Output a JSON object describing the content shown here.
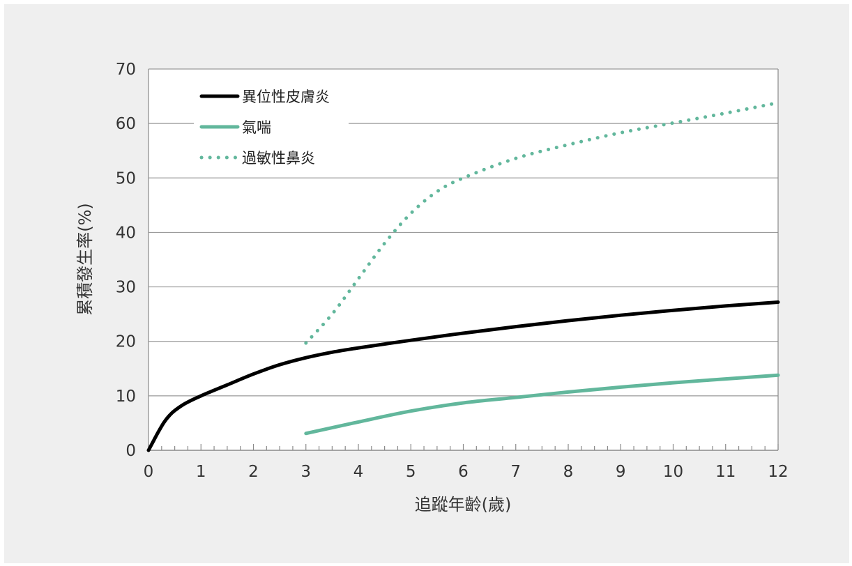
{
  "chart_data": {
    "type": "line",
    "xlabel": "追蹤年齡(歲)",
    "ylabel": "累積發生率(%)",
    "xlim": [
      0,
      12
    ],
    "ylim": [
      0,
      70
    ],
    "x_ticks": [
      0,
      1,
      2,
      3,
      4,
      5,
      6,
      7,
      8,
      9,
      10,
      11,
      12
    ],
    "y_ticks": [
      0,
      10,
      20,
      30,
      40,
      50,
      60,
      70
    ],
    "grid": "horizontal",
    "legend_position": "top-left",
    "series": [
      {
        "name": "異位性皮膚炎",
        "color": "#000000",
        "style": "solid",
        "points": [
          [
            0,
            0
          ],
          [
            0.1,
            1.8
          ],
          [
            0.2,
            3.6
          ],
          [
            0.3,
            5.2
          ],
          [
            0.4,
            6.4
          ],
          [
            0.5,
            7.3
          ],
          [
            0.7,
            8.6
          ],
          [
            1,
            10
          ],
          [
            1.5,
            12
          ],
          [
            2,
            14
          ],
          [
            2.5,
            15.7
          ],
          [
            3,
            17
          ],
          [
            3.5,
            18
          ],
          [
            4,
            18.8
          ],
          [
            5,
            20.2
          ],
          [
            6,
            21.5
          ],
          [
            7,
            22.7
          ],
          [
            8,
            23.8
          ],
          [
            9,
            24.8
          ],
          [
            10,
            25.7
          ],
          [
            11,
            26.5
          ],
          [
            12,
            27.2
          ]
        ]
      },
      {
        "name": "氣喘",
        "color": "#62b79c",
        "style": "solid",
        "points": [
          [
            3,
            3.1
          ],
          [
            4,
            5.2
          ],
          [
            5,
            7.2
          ],
          [
            6,
            8.7
          ],
          [
            7,
            9.7
          ],
          [
            8,
            10.7
          ],
          [
            9,
            11.6
          ],
          [
            10,
            12.4
          ],
          [
            11,
            13.1
          ],
          [
            12,
            13.8
          ]
        ]
      },
      {
        "name": "過敏性鼻炎",
        "color": "#62b79c",
        "style": "dotted",
        "points": [
          [
            3,
            19.7
          ],
          [
            3.5,
            25
          ],
          [
            4,
            31.5
          ],
          [
            4.5,
            38
          ],
          [
            5,
            43.5
          ],
          [
            5.5,
            47.5
          ],
          [
            6,
            50
          ],
          [
            7,
            53.6
          ],
          [
            8,
            56.1
          ],
          [
            9,
            58.3
          ],
          [
            10,
            60.1
          ],
          [
            11,
            61.9
          ],
          [
            12,
            63.8
          ]
        ]
      }
    ]
  }
}
